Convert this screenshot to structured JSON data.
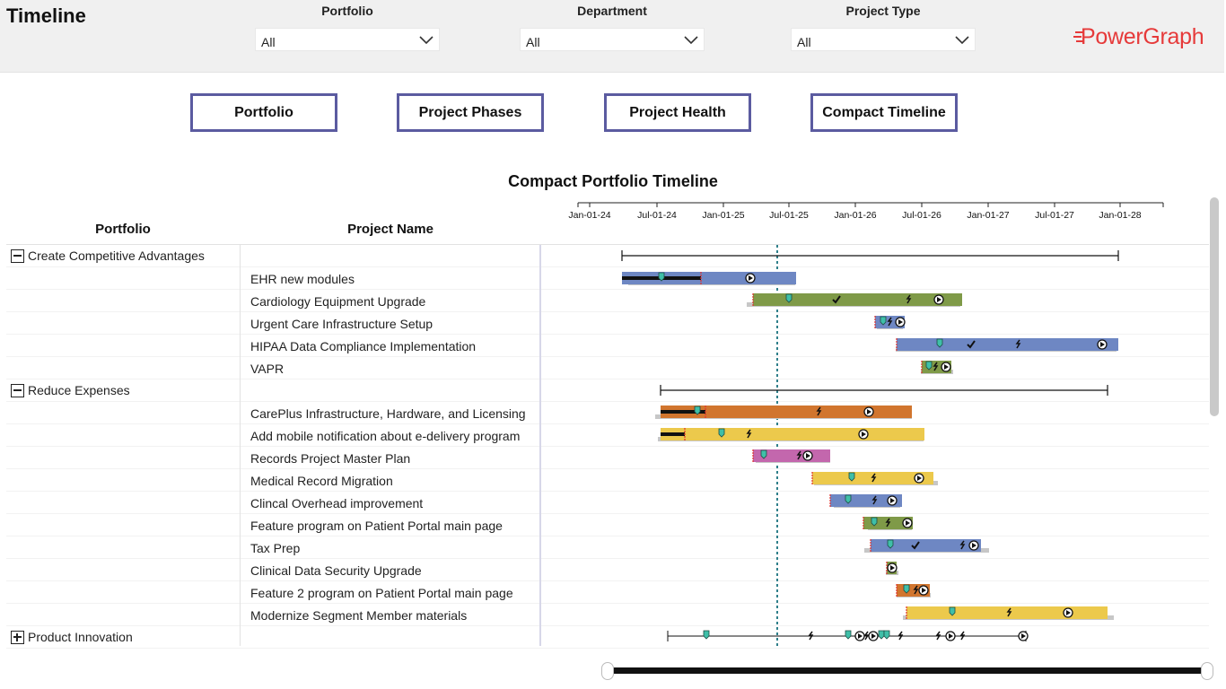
{
  "app_title": "Timeline",
  "filters": [
    {
      "label": "Portfolio",
      "value": "All"
    },
    {
      "label": "Department",
      "value": "All"
    },
    {
      "label": "Project Type",
      "value": "All"
    }
  ],
  "logo_text": "PowerGraph",
  "nav_buttons": [
    "Portfolio",
    "Project Phases",
    "Project Health",
    "Compact Timeline"
  ],
  "chart_title": "Compact Portfolio Timeline",
  "columns": {
    "portfolio": "Portfolio",
    "project": "Project Name"
  },
  "axis_ticks": [
    "Jan-01-24",
    "Jul-01-24",
    "Jan-01-25",
    "Jul-01-25",
    "Jan-01-26",
    "Jul-01-26",
    "Jan-01-27",
    "Jul-01-27",
    "Jan-01-28"
  ],
  "groups": [
    {
      "name": "Create Competitive Advantages",
      "state": "expanded"
    },
    {
      "name": "Reduce Expenses",
      "state": "expanded"
    },
    {
      "name": "Product Innovation",
      "state": "collapsed"
    }
  ],
  "projects": [
    "EHR new modules",
    "Cardiology Equipment Upgrade",
    "Urgent Care Infrastructure Setup",
    "HIPAA Data Compliance Implementation",
    "VAPR",
    "CarePlus Infrastructure, Hardware, and Licensing",
    "Add mobile notification about e-delivery program",
    "Records Project Master Plan",
    "Medical Record Migration",
    "Clincal Overhead improvement",
    "Feature program on Patient Portal main page",
    "Tax Prep",
    "Clinical Data Security Upgrade",
    "Feature 2 program on Patient Portal main page",
    "Modernize Segment Member materials"
  ],
  "colors": {
    "blue": "#6e87c3",
    "green": "#7f9a48",
    "orange": "#d1752e",
    "yellow": "#ecc94c",
    "pink": "#c367ad",
    "today_line": "#2f7f8a",
    "nav_border": "#5b5ba0",
    "logo": "#e63a3a"
  }
}
